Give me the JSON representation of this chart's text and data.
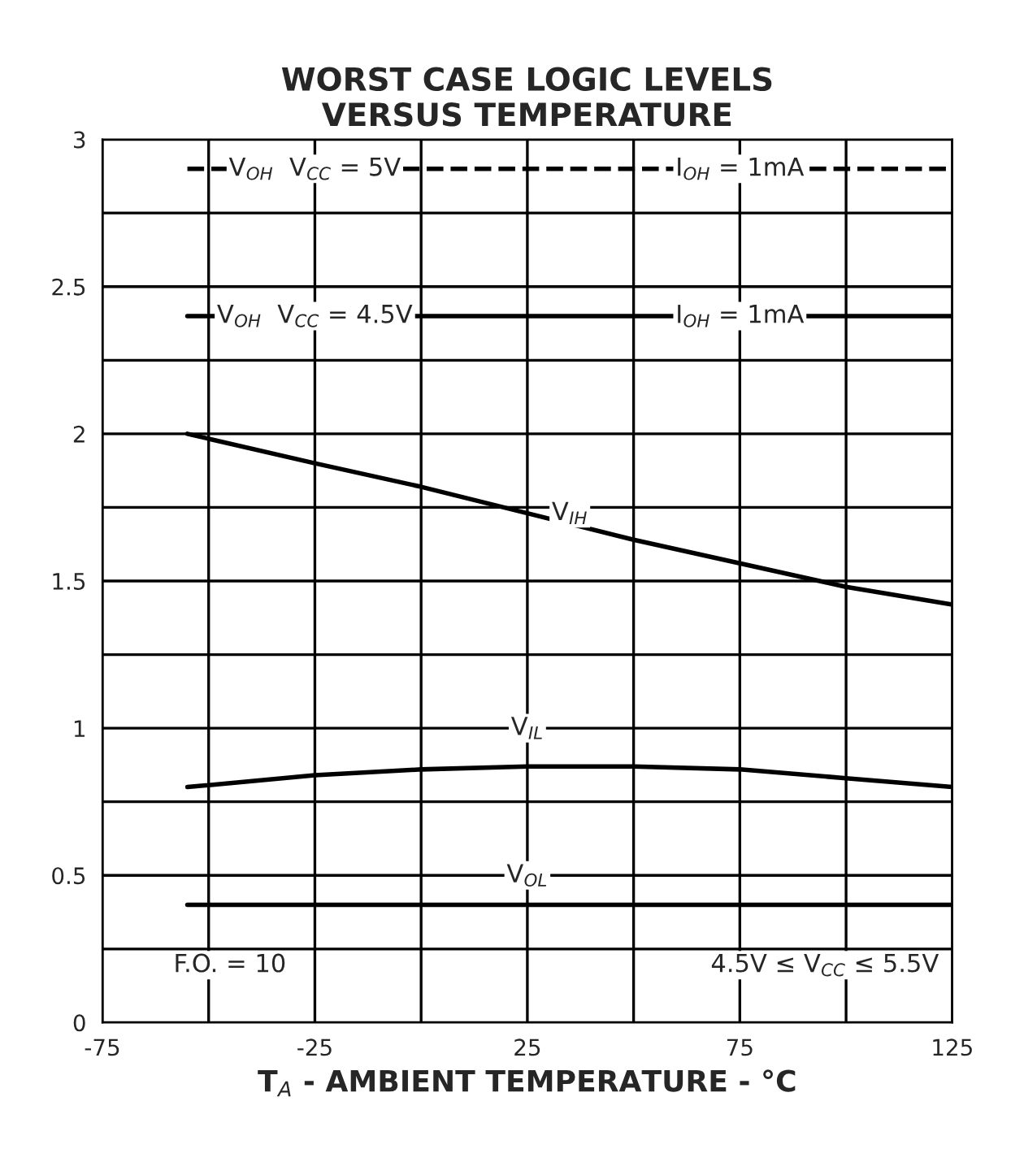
{
  "chart_data": {
    "type": "line",
    "title": "WORST CASE LOGIC LEVELS\nVERSUS TEMPERATURE",
    "xlabel": "T$_{A}$ - AMBIENT TEMPERATURE - °C",
    "xlim": [
      -75,
      125
    ],
    "xticks": [
      -75,
      {
        "value": -50,
        "label": null
      },
      -25,
      {
        "value": 0,
        "label": null
      },
      25,
      {
        "value": 50,
        "label": null
      },
      75,
      {
        "value": 100,
        "label": null
      },
      125
    ],
    "ylim": [
      0,
      3
    ],
    "yticks": [
      0,
      {
        "value": 0.25,
        "label": null
      },
      0.5,
      {
        "value": 0.75,
        "label": null
      },
      1,
      {
        "value": 1.25,
        "label": null
      },
      1.5,
      {
        "value": 1.75,
        "label": null
      },
      2,
      {
        "value": 2.25,
        "label": null
      },
      2.5,
      {
        "value": 2.75,
        "label": null
      },
      3
    ],
    "grid": true,
    "legend": false,
    "series": [
      {
        "color": "#000000",
        "line_style": "dashed",
        "x": [
          -55,
          125
        ],
        "values": [
          2.9,
          2.9
        ]
      },
      {
        "color": "#000000",
        "line_style": "solid",
        "x": [
          -55,
          125
        ],
        "values": [
          2.4,
          2.4
        ]
      },
      {
        "color": "#000000",
        "line_style": "solid",
        "x": [
          -55,
          -25,
          0,
          25,
          50,
          75,
          100,
          125
        ],
        "values": [
          2.0,
          1.9,
          1.82,
          1.73,
          1.64,
          1.56,
          1.48,
          1.42
        ]
      },
      {
        "color": "#000000",
        "line_style": "solid",
        "x": [
          -55,
          -25,
          0,
          25,
          50,
          75,
          100,
          125
        ],
        "values": [
          0.8,
          0.84,
          0.86,
          0.87,
          0.87,
          0.86,
          0.83,
          0.8
        ]
      },
      {
        "color": "#000000",
        "line_style": "solid",
        "x": [
          -55,
          125
        ],
        "values": [
          0.4,
          0.4
        ]
      }
    ],
    "annotations": [
      {
        "text": "V$_{OH}$  V$_{CC}$ = 5V",
        "x": -25,
        "y": 2.9
      },
      {
        "text": "I$_{OH}$ = 1mA",
        "x": 75,
        "y": 2.9
      },
      {
        "text": "V$_{OH}$  V$_{CC}$ = 4.5V",
        "x": -25,
        "y": 2.4
      },
      {
        "text": "I$_{OH}$ = 1mA",
        "x": 75,
        "y": 2.4
      },
      {
        "text": "V$_{IH}$",
        "x": 35,
        "y": 1.73
      },
      {
        "text": "V$_{IL}$",
        "x": 25,
        "y": 1.0
      },
      {
        "text": "V$_{OL}$",
        "x": 25,
        "y": 0.5
      },
      "F.O. = 10",
      "4.5V ≤ V$_{CC}$ ≤ 5.5V"
    ]
  }
}
